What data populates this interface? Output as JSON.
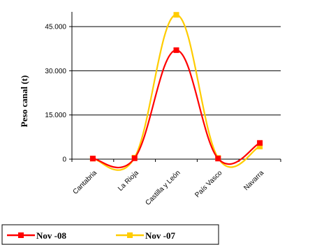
{
  "chart_data": {
    "type": "line",
    "title": "",
    "xlabel": "",
    "ylabel": "Peso canal (t)",
    "categories": [
      "Cantabria",
      "La Rioja",
      "Castilla y León",
      "País Vasco",
      "Navarra"
    ],
    "ylim": [
      0,
      50000
    ],
    "yticks": [
      0,
      15000,
      30000,
      45000
    ],
    "ytick_labels": [
      "0",
      "15.000",
      "30.000",
      "45.000"
    ],
    "grid": "horizontal",
    "legend_position": "bottom-left",
    "smooth": true,
    "series": [
      {
        "name": "Nov -08",
        "color": "#ff0000",
        "values": [
          200,
          300,
          37000,
          200,
          5500
        ]
      },
      {
        "name": "Nov -07",
        "color": "#ffcc00",
        "values": [
          200,
          500,
          49000,
          400,
          4300
        ]
      }
    ]
  }
}
